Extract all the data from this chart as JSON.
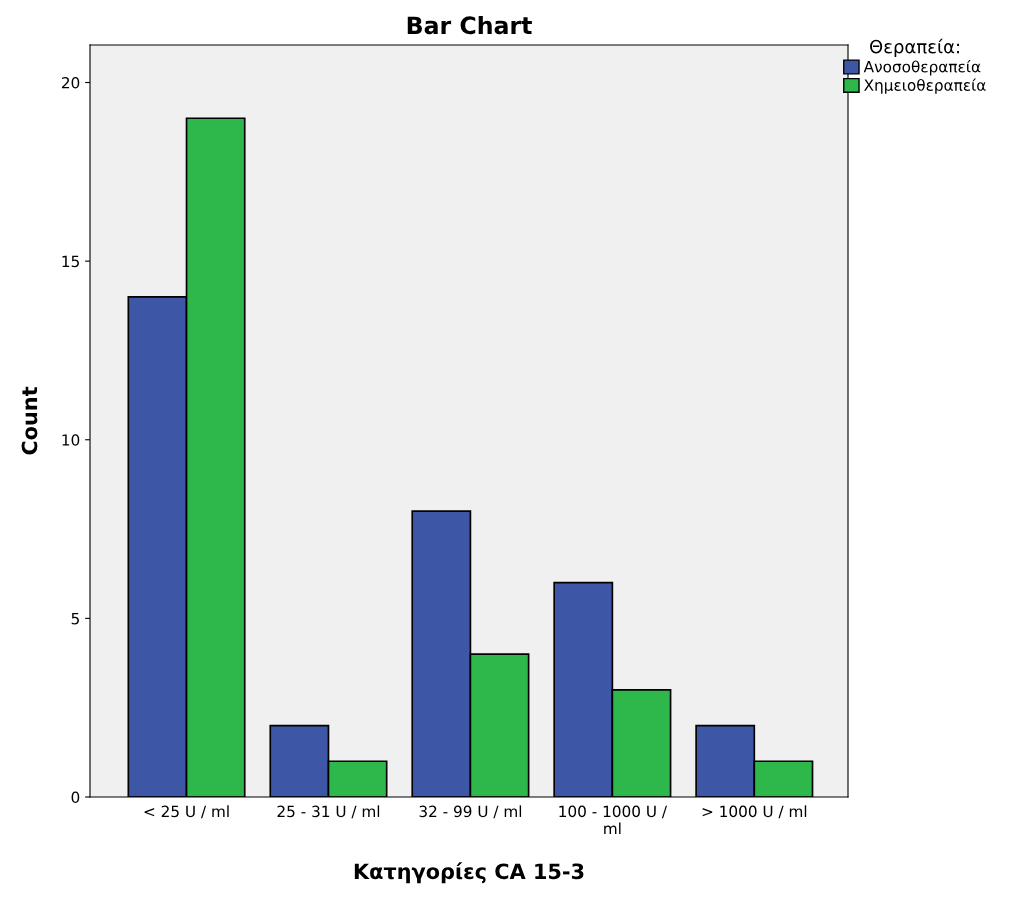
{
  "chart_data": {
    "type": "bar",
    "title": "Bar Chart",
    "xlabel": "Κατηγορίες CA 15-3",
    "ylabel": "Count",
    "legend_title": "Θεραπεία:",
    "categories": [
      "< 25 U / ml",
      "25 - 31 U / ml",
      "32 - 99 U / ml",
      "100 - 1000 U / ml",
      "> 1000 U / ml"
    ],
    "series": [
      {
        "name": "Ανοσοθεραπεία",
        "color": "#3d56a6",
        "values": [
          14,
          2,
          8,
          6,
          2
        ]
      },
      {
        "name": "Χημειοθεραπεία",
        "color": "#2eb84c",
        "values": [
          19,
          1,
          4,
          3,
          1
        ]
      }
    ],
    "ylim": [
      0,
      21.05
    ],
    "yticks": [
      0,
      5,
      10,
      15,
      20
    ],
    "grid": false,
    "legend": "top right"
  }
}
